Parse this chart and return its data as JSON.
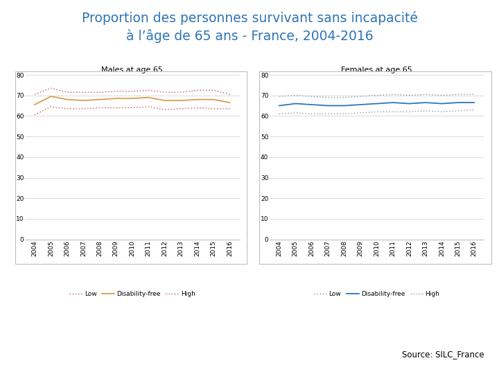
{
  "title_line1": "Proportion des personnes survivant sans incapacité",
  "title_line2": "à l’âge de 65 ans - France, 2004-2016",
  "title_color": "#2E74B5",
  "source_text": "Source: SILC_France",
  "years": [
    2004,
    2005,
    2006,
    2007,
    2008,
    2009,
    2010,
    2011,
    2012,
    2013,
    2014,
    2015,
    2016
  ],
  "males": {
    "title": "Males at age 65",
    "disability_free": [
      65.5,
      69.5,
      68.0,
      67.5,
      68.0,
      68.5,
      68.5,
      69.0,
      67.5,
      67.5,
      68.0,
      68.0,
      66.5
    ],
    "low": [
      60.5,
      64.5,
      63.5,
      63.5,
      64.0,
      64.0,
      64.0,
      64.5,
      63.0,
      63.5,
      64.0,
      63.5,
      63.5
    ],
    "high": [
      70.5,
      73.5,
      71.5,
      71.5,
      71.5,
      72.0,
      72.0,
      72.5,
      71.5,
      71.5,
      72.5,
      72.5,
      70.5
    ],
    "df_color": "#D4A050",
    "ci_color": "#C0504D"
  },
  "females": {
    "title": "Females at age 65",
    "disability_free": [
      65.0,
      66.0,
      65.5,
      65.0,
      65.0,
      65.5,
      66.0,
      66.5,
      66.0,
      66.5,
      66.0,
      66.5,
      66.5
    ],
    "low": [
      61.0,
      61.5,
      61.0,
      61.0,
      61.0,
      61.5,
      62.0,
      62.0,
      62.0,
      62.5,
      62.0,
      62.5,
      63.0
    ],
    "high": [
      69.5,
      70.0,
      69.5,
      69.0,
      69.0,
      69.5,
      70.0,
      70.5,
      70.0,
      70.5,
      70.0,
      70.5,
      70.5
    ],
    "df_color": "#2E75B6",
    "ci_color": "#8496A9"
  },
  "ylim": [
    0,
    80
  ],
  "yticks": [
    0,
    10,
    20,
    30,
    40,
    50,
    60,
    70,
    80
  ],
  "background_color": "#FFFFFF",
  "plot_bg_color": "#FFFFFF",
  "grid_color": "#D9D9D9",
  "box_color": "#BFBFBF"
}
